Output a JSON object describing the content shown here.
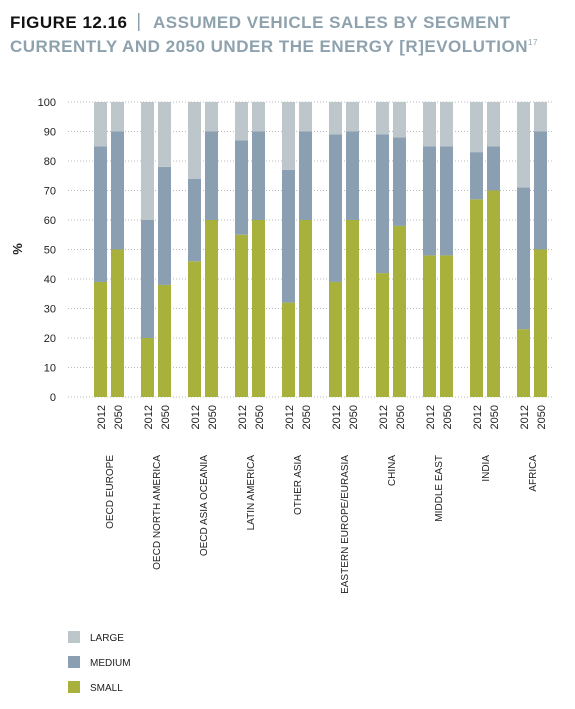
{
  "chart_data": {
    "type": "stacked_bar",
    "figure_label": "FIGURE 12.16",
    "title": [
      "ASSUMED VEHICLE SALES BY SEGMENT",
      "CURRENTLY AND 2050 UNDER THE ENERGY [R]EVOLUTION"
    ],
    "title_note": "17",
    "ylabel": "%",
    "groups": [
      "OECD EUROPE",
      "OECD NORTH AMERICA",
      "OECD ASIA OCEANIA",
      "LATIN AMERICA",
      "OTHER ASIA",
      "EASTERN EUROPE/EURASIA",
      "CHINA",
      "MIDDLE EAST",
      "INDIA",
      "AFRICA"
    ],
    "categories": [
      "2012",
      "2050",
      "2012",
      "2050",
      "2012",
      "2050",
      "2012",
      "2050",
      "2012",
      "2050",
      "2012",
      "2050",
      "2012",
      "2050",
      "2012",
      "2050",
      "2012",
      "2050",
      "2012",
      "2050"
    ],
    "series": [
      {
        "name": "SMALL",
        "color": "#a8b13b",
        "values": [
          39,
          50,
          20,
          38,
          46,
          60,
          55,
          60,
          32,
          60,
          39,
          60,
          42,
          58,
          48,
          48,
          67,
          70,
          23,
          50
        ]
      },
      {
        "name": "MEDIUM",
        "color": "#8b9fb2",
        "values": [
          46,
          40,
          40,
          40,
          28,
          30,
          32,
          30,
          45,
          30,
          50,
          30,
          47,
          30,
          37,
          37,
          16,
          15,
          48,
          40
        ]
      },
      {
        "name": "LARGE",
        "color": "#bdc7cb",
        "values": [
          15,
          10,
          40,
          22,
          26,
          10,
          13,
          10,
          23,
          10,
          11,
          10,
          11,
          12,
          15,
          15,
          17,
          15,
          29,
          10
        ]
      }
    ],
    "ylim": [
      0,
      100
    ],
    "yticks": [
      0,
      10,
      20,
      30,
      40,
      50,
      60,
      70,
      80,
      90,
      100
    ],
    "grid": true,
    "legend": "bottom-left"
  }
}
